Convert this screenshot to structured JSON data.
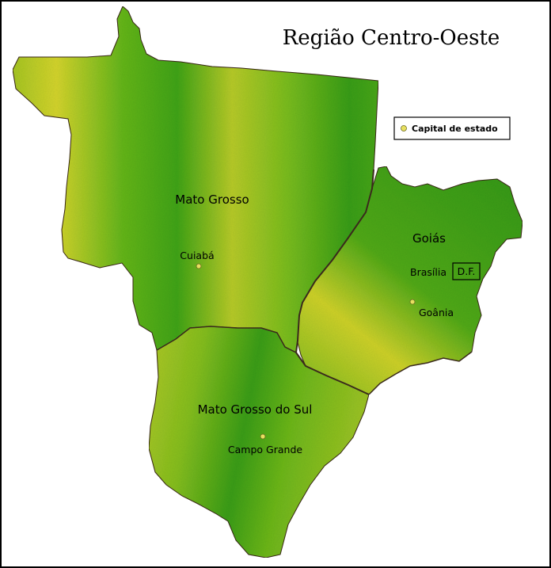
{
  "title": "Região Centro-Oeste",
  "legend": {
    "capital_label": "Capital de estado",
    "marker_color": "#e8e060"
  },
  "states": [
    {
      "name": "Mato Grosso",
      "capital": "Cuiabá"
    },
    {
      "name": "Mato Grosso do Sul",
      "capital": "Campo Grande"
    },
    {
      "name": "Goiás",
      "capital": "Goânia"
    }
  ],
  "federal_district": {
    "abbrev": "D.F.",
    "capital": "Brasília"
  },
  "colors": {
    "dark_green": "#2f9a1c",
    "mid_green": "#5cb81e",
    "yellow_green": "#c9d62a",
    "border": "#3a2a1c"
  }
}
